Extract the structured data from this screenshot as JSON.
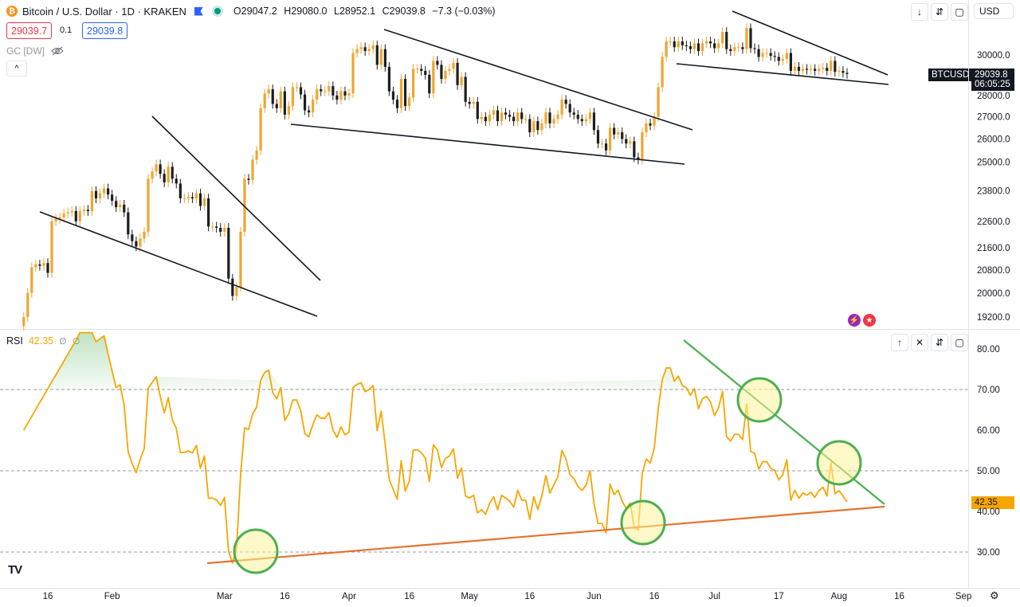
{
  "header": {
    "symbol_title": "Bitcoin / U.S. Dollar · 1D · KRAKEN",
    "coin_icon": "bitcoin-icon",
    "ohlc": {
      "o": "O29047.2",
      "h": "H29080.0",
      "l": "L28952.1",
      "c": "C29039.8",
      "chg": "−7.3 (−0.03%)"
    },
    "sell_price": "29039.7",
    "spread": "0.1",
    "buy_price": "29039.8",
    "indicator": "GC [DW]",
    "collapse_label": "^"
  },
  "toolbar": {
    "currency": "USD"
  },
  "rsi_header": {
    "name": "RSI",
    "value": "42.35",
    "extra1": "∅",
    "extra2": "∅"
  },
  "price_tags": {
    "symbol_tag": "BTCUSD",
    "last_price": "29039.8",
    "countdown": "06:05:25",
    "rsi_last": "42.35"
  },
  "colors": {
    "up": "#f0a52f",
    "down": "#1e1e1e",
    "rsi_line": "#f7a600",
    "rsi_support": "#e3742e",
    "rsi_resistance": "#4caf50",
    "circle_fill": "#fff29a",
    "circle_stroke": "#4caf50"
  },
  "chart_data": [
    {
      "type": "candlestick",
      "title": "Bitcoin / U.S. Dollar · 1D · KRAKEN",
      "x_tick_labels": [
        "16",
        "Feb",
        "Mar",
        "16",
        "Apr",
        "16",
        "May",
        "16",
        "Jun",
        "16",
        "Jul",
        "17",
        "Aug",
        "16",
        "Sep"
      ],
      "y_tick_labels": [
        "30000.0",
        "28000.0",
        "27000.0",
        "26000.0",
        "25000.0",
        "23800.0",
        "22600.0",
        "21600.0",
        "20800.0",
        "20000.0",
        "19200.0"
      ],
      "y_ticks": [
        30000,
        28000,
        27000,
        26000,
        25000,
        23800,
        22600,
        21600,
        20800,
        20000,
        19200
      ],
      "scale": "log",
      "start_date": "2023-01-10",
      "closes": [
        19200,
        20000,
        20900,
        21000,
        20950,
        21050,
        20700,
        22600,
        22700,
        22750,
        22900,
        22950,
        23000,
        22600,
        23000,
        23050,
        23000,
        23800,
        23500,
        23700,
        23900,
        23650,
        23400,
        23150,
        23250,
        22950,
        22100,
        21850,
        21650,
        21950,
        22200,
        24300,
        24600,
        24900,
        24500,
        24150,
        24800,
        24300,
        24100,
        23500,
        23500,
        23550,
        23500,
        23700,
        23200,
        23500,
        22400,
        22400,
        22350,
        22200,
        22350,
        20500,
        19900,
        20200,
        22200,
        24300,
        24250,
        25100,
        25500,
        27400,
        28100,
        28300,
        27600,
        27400,
        28200,
        27100,
        27500,
        28400,
        28400,
        28050,
        27300,
        27200,
        27800,
        28300,
        28200,
        28200,
        28450,
        28000,
        27800,
        28200,
        28000,
        28100,
        30100,
        30300,
        30400,
        30200,
        30300,
        30500,
        29500,
        30300,
        29400,
        28200,
        27800,
        27400,
        28800,
        27500,
        27900,
        29300,
        29300,
        29200,
        29000,
        28100,
        29700,
        29500,
        28800,
        29200,
        29300,
        29600,
        28500,
        28900,
        27700,
        27600,
        27700,
        26900,
        27000,
        26800,
        27100,
        27300,
        26800,
        27200,
        27100,
        27000,
        26800,
        27200,
        26900,
        26900,
        26300,
        26800,
        26400,
        26700,
        27200,
        26700,
        26900,
        27100,
        27800,
        27600,
        27200,
        27100,
        26900,
        26800,
        26900,
        27200,
        26400,
        25800,
        25800,
        25500,
        26500,
        26200,
        26300,
        26000,
        25800,
        25900,
        25200,
        25100,
        26300,
        26700,
        26600,
        27000,
        28400,
        29900,
        30700,
        30700,
        30400,
        30700,
        30500,
        30450,
        30300,
        30600,
        30200,
        30600,
        30700,
        30600,
        30350,
        30600,
        31200,
        30300,
        30200,
        30400,
        30400,
        30300,
        31400,
        30350,
        30300,
        29900,
        30100,
        30100,
        29950,
        29900,
        29700,
        29800,
        30100,
        29200,
        29400,
        29200,
        29300,
        29250,
        29300,
        29200,
        29300,
        29350,
        29200,
        29700,
        29150,
        29200,
        29100,
        29040
      ],
      "ylim": [
        19000,
        31500
      ]
    },
    {
      "type": "line",
      "name": "RSI",
      "y_tick_labels": [
        "80.00",
        "70.00",
        "60.00",
        "50.00",
        "40.00",
        "30.00"
      ],
      "y_ticks": [
        80,
        70,
        60,
        50,
        40,
        30
      ],
      "ylim": [
        26,
        84
      ],
      "overbought": 70,
      "midline": 50,
      "oversold": 30,
      "last_value": 42.35
    }
  ]
}
